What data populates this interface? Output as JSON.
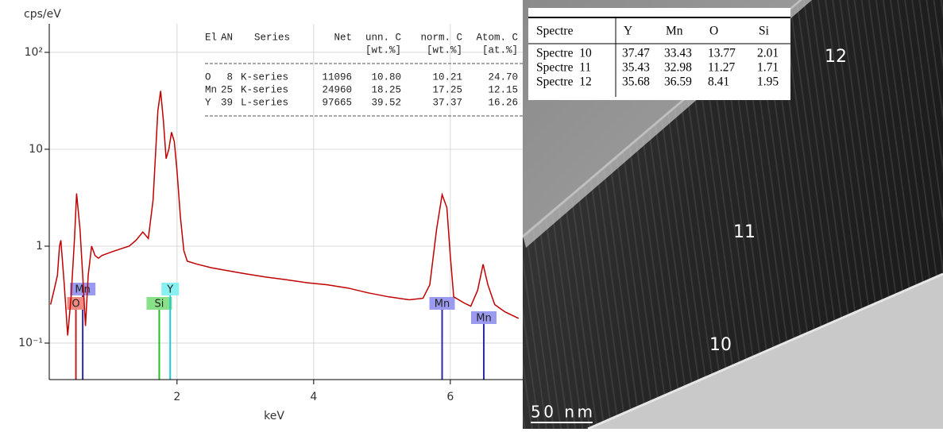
{
  "chart_data": {
    "type": "line",
    "x_label": "keV",
    "y_label": "cps/eV",
    "log_y": true,
    "grid": true,
    "xlim": [
      0.13,
      7.06
    ],
    "xticks": [
      2,
      4,
      6
    ],
    "ylim": [
      0.042,
      197
    ],
    "yticks": [
      {
        "value": 0.1,
        "label": "10⁻¹"
      },
      1,
      10,
      {
        "value": 100,
        "label": "10²"
      }
    ],
    "x": [
      0.15,
      0.2,
      0.25,
      0.28,
      0.3,
      0.35,
      0.4,
      0.45,
      0.5,
      0.53,
      0.58,
      0.62,
      0.66,
      0.7,
      0.75,
      0.8,
      0.85,
      0.9,
      1.0,
      1.1,
      1.2,
      1.3,
      1.4,
      1.5,
      1.58,
      1.65,
      1.72,
      1.76,
      1.8,
      1.84,
      1.88,
      1.92,
      1.96,
      2.0,
      2.05,
      2.1,
      2.15,
      2.3,
      2.5,
      2.8,
      3.0,
      3.3,
      3.6,
      3.9,
      4.2,
      4.5,
      4.8,
      5.1,
      5.4,
      5.6,
      5.7,
      5.8,
      5.88,
      5.95,
      6.0,
      6.05,
      6.2,
      6.3,
      6.4,
      6.48,
      6.55,
      6.65,
      6.8,
      7.0
    ],
    "series": [
      {
        "name": "Spectrum",
        "color": "#c00000",
        "values": [
          0.25,
          0.35,
          0.5,
          1.0,
          1.15,
          0.4,
          0.12,
          0.3,
          1.2,
          3.5,
          1.5,
          0.5,
          0.15,
          0.5,
          1.0,
          0.8,
          0.75,
          0.8,
          0.85,
          0.9,
          0.95,
          1.0,
          1.15,
          1.4,
          1.2,
          3.0,
          25,
          40,
          20,
          8,
          10,
          15,
          12,
          6,
          2.0,
          0.9,
          0.7,
          0.65,
          0.6,
          0.55,
          0.52,
          0.48,
          0.45,
          0.42,
          0.4,
          0.37,
          0.33,
          0.3,
          0.28,
          0.29,
          0.4,
          1.5,
          3.4,
          2.5,
          0.8,
          0.3,
          0.26,
          0.24,
          0.35,
          0.65,
          0.4,
          0.25,
          0.21,
          0.18
        ]
      }
    ],
    "markers": [
      {
        "label": "Mn",
        "x": 0.62,
        "color": "#9a9af0",
        "line_color": "#2a2aa8"
      },
      {
        "label": "O",
        "x": 0.52,
        "color": "#f08a80",
        "line_color": "#c02020"
      },
      {
        "label": "Si",
        "x": 1.74,
        "color": "#88e088",
        "line_color": "#20c020"
      },
      {
        "label": "Y",
        "x": 1.9,
        "color": "#88f0f0",
        "line_color": "#20c8d8"
      },
      {
        "label": "Mn",
        "x": 5.88,
        "color": "#9a9af0",
        "line_color": "#2a2aa8"
      },
      {
        "label": "Mn",
        "x": 6.49,
        "color": "#9a9af0",
        "line_color": "#2a2aa8"
      }
    ],
    "quant_table": {
      "header": [
        "El",
        "AN",
        "Series",
        "Net",
        "unn. C",
        "norm. C",
        "Atom. C"
      ],
      "units": [
        "[wt.%]",
        "[wt.%]",
        "[at.%]"
      ],
      "rows": [
        [
          "O",
          "8",
          "K-series",
          "11096",
          "10.80",
          "10.21",
          "24.70"
        ],
        [
          "Mn",
          "25",
          "K-series",
          "24960",
          "18.25",
          "17.25",
          "12.15"
        ],
        [
          "Y",
          "39",
          "L-series",
          "97665",
          "39.52",
          "37.37",
          "16.26"
        ]
      ]
    }
  },
  "image": {
    "labels": [
      "12",
      "11",
      "10"
    ],
    "scale_bar": "50 nm",
    "table": {
      "header": [
        "Spectre",
        "Y",
        "Mn",
        "O",
        "Si"
      ],
      "rows": [
        [
          "Spectre  10",
          "37.47",
          "33.43",
          "13.77",
          "2.01"
        ],
        [
          "Spectre  11",
          "35.43",
          "32.98",
          "11.27",
          "1.71"
        ],
        [
          "Spectre  12",
          "35.68",
          "36.59",
          "8.41",
          "1.95"
        ]
      ]
    }
  }
}
